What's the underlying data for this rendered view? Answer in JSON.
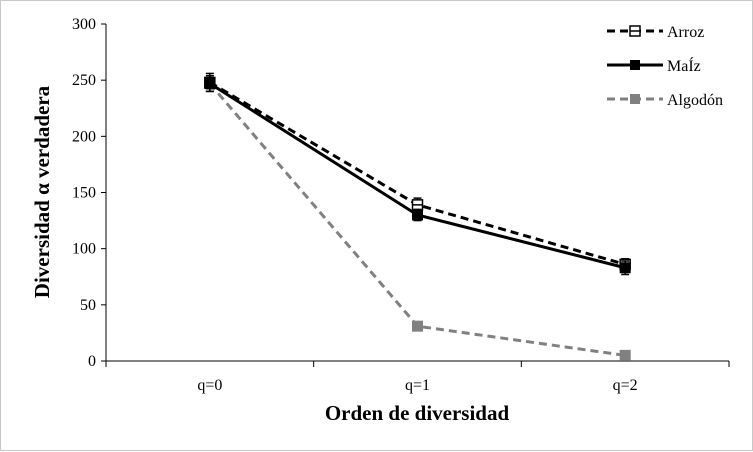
{
  "chart_data": {
    "type": "line",
    "categories": [
      "q=0",
      "q=1",
      "q=2"
    ],
    "xlabel": "Orden de diversidad",
    "ylabel": "Diversidad α verdadera",
    "ylim": [
      0,
      300
    ],
    "yticks": [
      "0",
      "50",
      "100",
      "150",
      "200",
      "250",
      "300"
    ],
    "grid": false,
    "legend_position": "top-right",
    "series": [
      {
        "name": "Arroz",
        "values": [
          248,
          139,
          86
        ],
        "errors": [
          8,
          6,
          5
        ],
        "color": "#000000",
        "line_style": "dashed",
        "marker": "open-square"
      },
      {
        "name": "MaÍz",
        "values": [
          247,
          130,
          83
        ],
        "errors": [
          7,
          5,
          6
        ],
        "color": "#000000",
        "line_style": "solid",
        "marker": "filled-square"
      },
      {
        "name": "Algodón",
        "values": [
          247,
          31,
          5
        ],
        "errors": [
          5,
          2,
          1
        ],
        "color": "#808080",
        "line_style": "dashed",
        "marker": "filled-square"
      }
    ]
  }
}
